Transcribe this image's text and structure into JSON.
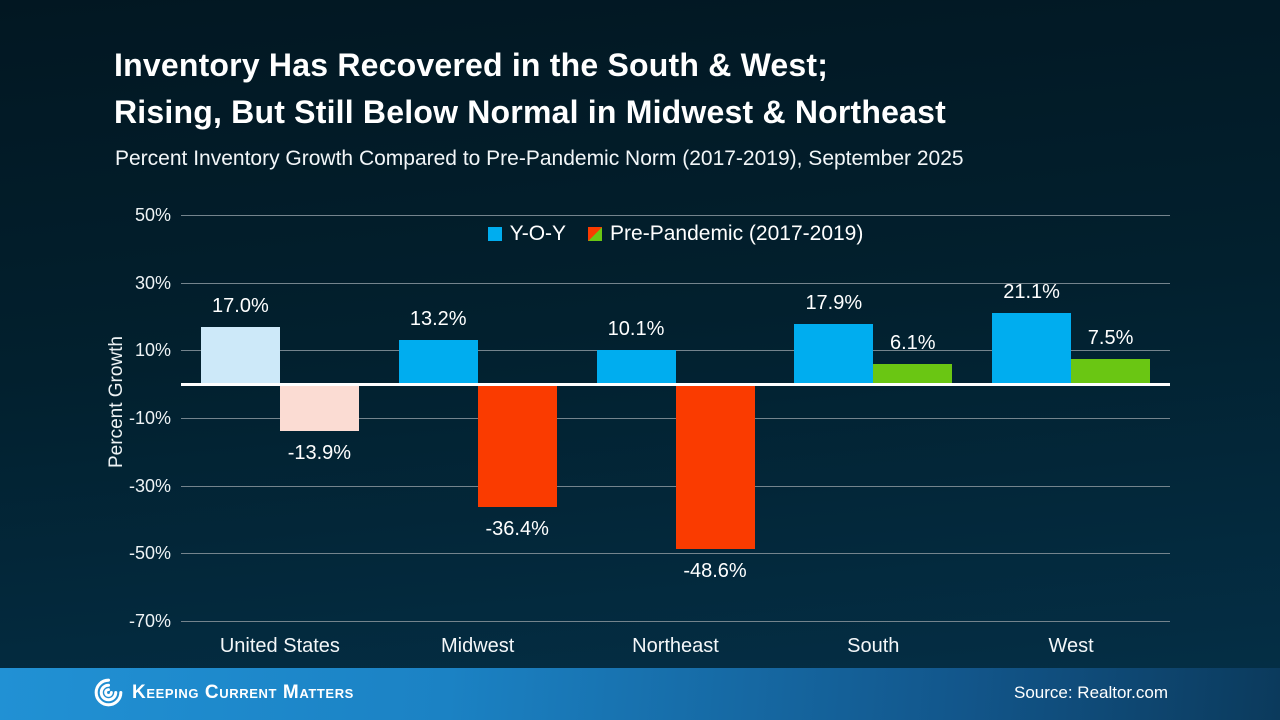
{
  "slide": {
    "title_line1": "Inventory Has Recovered in the South & West;",
    "title_line2": "Rising, But Still Below Normal in Midwest & Northeast",
    "subtitle": "Percent Inventory Growth Compared to Pre-Pandemic Norm (2017-2019), September 2025"
  },
  "chart_data": {
    "type": "bar",
    "title": "Inventory Has Recovered in the South & West; Rising, But Still Below Normal in Midwest & Northeast",
    "xlabel": "",
    "ylabel": "Percent Growth",
    "categories": [
      "United States",
      "Midwest",
      "Northeast",
      "South",
      "West"
    ],
    "series": [
      {
        "name": "Y-O-Y",
        "values": [
          17.0,
          13.2,
          10.1,
          17.9,
          21.1
        ],
        "labels": [
          "17.0%",
          "13.2%",
          "10.1%",
          "17.9%",
          "21.1%"
        ],
        "colors": [
          "#CDE9F9",
          "#00ADEF",
          "#00ADEF",
          "#00ADEF",
          "#00ADEF"
        ]
      },
      {
        "name": "Pre-Pandemic (2017-2019)",
        "values": [
          -13.9,
          -36.4,
          -48.6,
          6.1,
          7.5
        ],
        "labels": [
          "-13.9%",
          "-36.4%",
          "-48.6%",
          "6.1%",
          "7.5%"
        ],
        "colors": [
          "#FBDCD3",
          "#FA3B00",
          "#FA3B00",
          "#6AC613",
          "#6AC613"
        ]
      }
    ],
    "yticks": [
      50,
      30,
      10,
      -10,
      -30,
      -50,
      -70
    ],
    "ytick_labels": [
      "50%",
      "30%",
      "10%",
      "-10%",
      "-30%",
      "-50%",
      "-70%"
    ],
    "ylim": [
      -70,
      50
    ],
    "grid": true,
    "legend_position": "top-center",
    "legend": [
      {
        "label": "Y-O-Y",
        "swatch": [
          "#00ADEF"
        ]
      },
      {
        "label": "Pre-Pandemic (2017-2019)",
        "swatch": [
          "#FA3B00",
          "#6AC613"
        ]
      }
    ]
  },
  "footer": {
    "brand": "Keeping Current Matters",
    "logo_icon": "kcm-spiral-icon",
    "source": "Source: Realtor.com"
  },
  "colors": {
    "background_top": "#021722",
    "background_bottom": "#043048",
    "yoy_blue": "#00ADEF",
    "yoy_blue_muted": "#CDE9F9",
    "prepandemic_red": "#FA3B00",
    "prepandemic_red_muted": "#FBDCD3",
    "prepandemic_green": "#6AC613",
    "gridline": "#74848d",
    "footer_blue_left": "#2191d4",
    "footer_blue_right": "#0b3a5c"
  }
}
